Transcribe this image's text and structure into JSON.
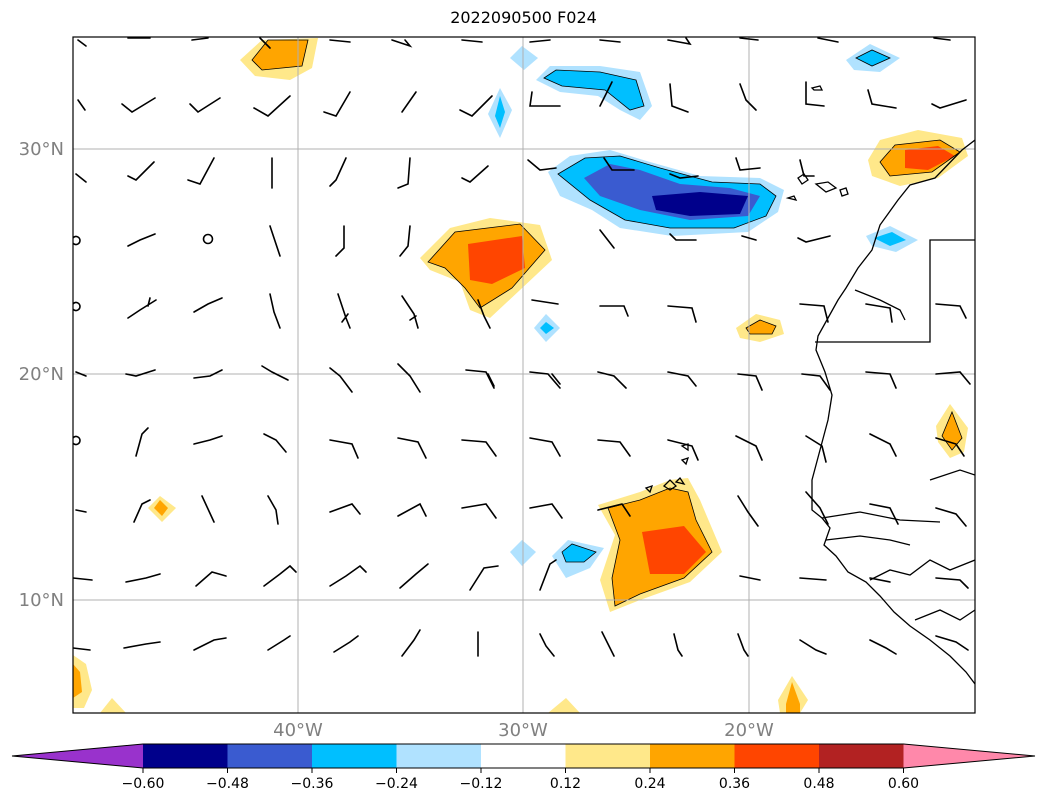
{
  "title": "2022090500 F024",
  "lat_labels": [
    "30°N",
    "20°N",
    "10°N"
  ],
  "lon_labels": [
    "40°W",
    "30°W",
    "20°W"
  ],
  "colorbar": {
    "ticks": [
      "−0.60",
      "−0.48",
      "−0.36",
      "−0.24",
      "−0.12",
      "0.12",
      "0.24",
      "0.36",
      "0.48",
      "0.60"
    ],
    "colors": [
      "#9932cc",
      "#00008b",
      "#3a5bd0",
      "#00bfff",
      "#b0e2ff",
      "#ffffff",
      "#ffe88a",
      "#ffa500",
      "#ff4500",
      "#b22222",
      "#ff88aa"
    ]
  },
  "fill_colors": {
    "light_blue": "#b0e2ff",
    "blue": "#00bfff",
    "royal": "#3a5bd0",
    "navy": "#00008b",
    "yellow": "#ffe88a",
    "orange": "#ffa500",
    "red": "#ff4500"
  }
}
